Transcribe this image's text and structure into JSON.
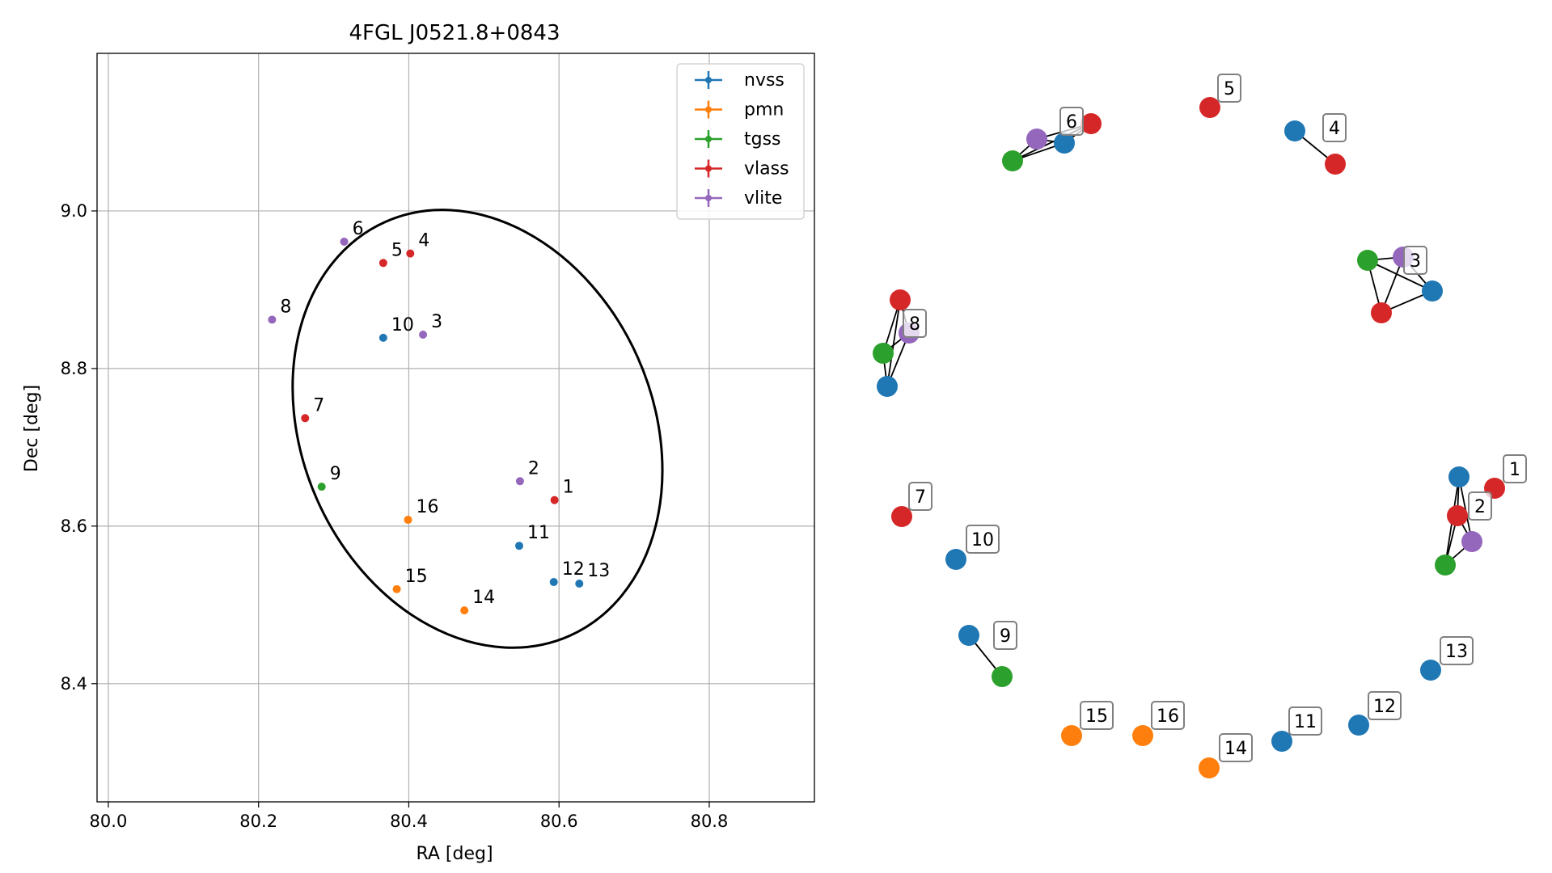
{
  "chart_data": [
    {
      "type": "scatter",
      "title": "4FGL J0521.8+0843",
      "xlabel": "RA [deg]",
      "ylabel": "Dec [deg]",
      "xlim": [
        79.985,
        80.94
      ],
      "ylim": [
        8.25,
        9.2
      ],
      "xticks": [
        "80.0",
        "80.2",
        "80.4",
        "80.6",
        "80.8"
      ],
      "yticks": [
        "8.4",
        "8.6",
        "8.8",
        "9.0"
      ],
      "grid": true,
      "legend_position": "top-right",
      "series": [
        {
          "name": "nvss",
          "color": "#1f77b4",
          "points": [
            {
              "id": "10",
              "x": 80.366,
              "y": 8.839
            },
            {
              "id": "11",
              "x": 80.547,
              "y": 8.575
            },
            {
              "id": "12",
              "x": 80.593,
              "y": 8.529
            },
            {
              "id": "13",
              "x": 80.627,
              "y": 8.527
            }
          ]
        },
        {
          "name": "pmn",
          "color": "#ff7f0e",
          "points": [
            {
              "id": "14",
              "x": 80.474,
              "y": 8.493
            },
            {
              "id": "15",
              "x": 80.384,
              "y": 8.52
            },
            {
              "id": "16",
              "x": 80.399,
              "y": 8.608
            }
          ]
        },
        {
          "name": "tgss",
          "color": "#2ca02c",
          "points": [
            {
              "id": "9",
              "x": 80.284,
              "y": 8.65
            }
          ]
        },
        {
          "name": "vlass",
          "color": "#d62728",
          "points": [
            {
              "id": "1",
              "x": 80.594,
              "y": 8.633
            },
            {
              "id": "4",
              "x": 80.402,
              "y": 8.946
            },
            {
              "id": "5",
              "x": 80.366,
              "y": 8.934
            },
            {
              "id": "7",
              "x": 80.262,
              "y": 8.737
            }
          ]
        },
        {
          "name": "vlite",
          "color": "#9467bd",
          "points": [
            {
              "id": "2",
              "x": 80.548,
              "y": 8.657
            },
            {
              "id": "3",
              "x": 80.419,
              "y": 8.843
            },
            {
              "id": "6",
              "x": 80.314,
              "y": 8.961
            },
            {
              "id": "8",
              "x": 80.218,
              "y": 8.862
            }
          ]
        }
      ],
      "ellipse": {
        "center_x": 80.4915,
        "center_y": 8.7235,
        "semi_x": 0.2335,
        "semi_y": 0.2875,
        "rotation_deg": 24
      }
    },
    {
      "type": "network",
      "colors": {
        "nvss": "#1f77b4",
        "pmn": "#ff7f0e",
        "tgss": "#2ca02c",
        "vlass": "#d62728",
        "vlite": "#9467bd"
      },
      "labels": [
        "1",
        "2",
        "3",
        "4",
        "5",
        "6",
        "7",
        "8",
        "9",
        "10",
        "11",
        "12",
        "13",
        "14",
        "15",
        "16"
      ]
    }
  ]
}
